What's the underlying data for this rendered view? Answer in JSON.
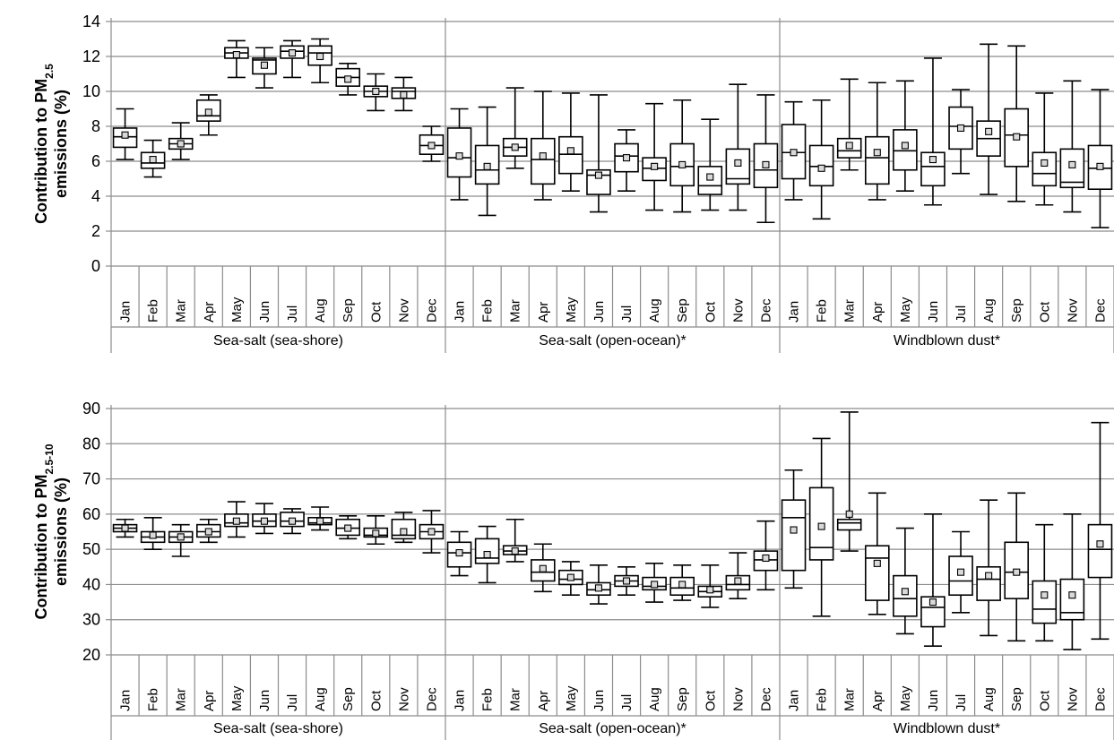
{
  "chart_data": [
    {
      "type": "box",
      "ylabel": "Contribution to PM",
      "ylabel_sub": "2.5",
      "ylabel_line2": "emissions  (%)",
      "ylim": [
        0,
        14
      ],
      "yticks": [
        "0",
        "2",
        "4",
        "6",
        "8",
        "10",
        "12",
        "14"
      ],
      "ytick_values": [
        0,
        2,
        4,
        6,
        8,
        10,
        12,
        14
      ],
      "grid": true,
      "categories": [
        "Jan",
        "Feb",
        "Mar",
        "Apr",
        "May",
        "Jun",
        "Jul",
        "Aug",
        "Sep",
        "Oct",
        "Nov",
        "Dec",
        "Jan",
        "Feb",
        "Mar",
        "Apr",
        "May",
        "Jun",
        "Jul",
        "Aug",
        "Sep",
        "Oct",
        "Nov",
        "Dec",
        "Jan",
        "Feb",
        "Mar",
        "Apr",
        "May",
        "Jun",
        "Jul",
        "Aug",
        "Sep",
        "Oct",
        "Nov",
        "Dec"
      ],
      "groups": [
        {
          "label": "Sea-salt (sea-shore)",
          "count": 12
        },
        {
          "label": "Sea-salt (open-ocean)*",
          "count": 12
        },
        {
          "label": "Windblown dust*",
          "count": 12
        }
      ],
      "stats": [
        [
          6.1,
          6.8,
          7.4,
          7.9,
          9.0,
          7.5
        ],
        [
          5.1,
          5.6,
          5.9,
          6.5,
          7.2,
          6.1
        ],
        [
          6.1,
          6.7,
          7.0,
          7.3,
          8.2,
          7.0
        ],
        [
          7.5,
          8.3,
          8.6,
          9.5,
          9.8,
          8.8
        ],
        [
          10.8,
          11.9,
          12.2,
          12.5,
          12.9,
          12.1
        ],
        [
          10.2,
          11.0,
          11.8,
          11.9,
          12.5,
          11.5
        ],
        [
          10.8,
          11.9,
          12.3,
          12.6,
          12.9,
          12.2
        ],
        [
          10.5,
          11.5,
          12.2,
          12.6,
          13.0,
          12.0
        ],
        [
          9.8,
          10.3,
          10.8,
          11.3,
          11.6,
          10.7
        ],
        [
          8.9,
          9.7,
          10.0,
          10.3,
          11.0,
          10.0
        ],
        [
          8.9,
          9.6,
          10.0,
          10.2,
          10.8,
          9.8
        ],
        [
          6.0,
          6.4,
          6.9,
          7.5,
          8.0,
          6.9
        ],
        [
          3.8,
          5.1,
          6.2,
          7.9,
          9.0,
          6.3
        ],
        [
          2.9,
          4.7,
          5.5,
          6.9,
          9.1,
          5.7
        ],
        [
          5.6,
          6.3,
          6.8,
          7.3,
          10.2,
          6.8
        ],
        [
          3.8,
          4.7,
          6.1,
          7.3,
          10.0,
          6.3
        ],
        [
          4.3,
          5.3,
          6.4,
          7.4,
          9.9,
          6.6
        ],
        [
          3.1,
          4.1,
          5.2,
          5.5,
          9.8,
          5.2
        ],
        [
          4.3,
          5.4,
          6.3,
          7.0,
          7.8,
          6.2
        ],
        [
          3.2,
          4.9,
          5.6,
          6.2,
          9.3,
          5.7
        ],
        [
          3.1,
          4.6,
          5.7,
          7.0,
          9.5,
          5.8
        ],
        [
          3.2,
          4.1,
          4.6,
          5.7,
          8.4,
          5.1
        ],
        [
          3.2,
          4.7,
          5.0,
          6.7,
          10.4,
          5.9
        ],
        [
          2.5,
          4.5,
          5.5,
          7.0,
          9.8,
          5.8
        ],
        [
          3.8,
          5.0,
          6.5,
          8.1,
          9.4,
          6.5
        ],
        [
          2.7,
          4.6,
          5.7,
          6.9,
          9.5,
          5.6
        ],
        [
          5.5,
          6.2,
          6.6,
          7.3,
          10.7,
          6.9
        ],
        [
          3.8,
          4.7,
          6.2,
          7.4,
          10.5,
          6.5
        ],
        [
          4.3,
          5.5,
          6.6,
          7.8,
          10.6,
          6.9
        ],
        [
          3.5,
          4.6,
          5.7,
          6.5,
          11.9,
          6.1
        ],
        [
          5.3,
          6.7,
          8.0,
          9.1,
          10.1,
          7.9
        ],
        [
          4.1,
          6.3,
          7.3,
          8.3,
          12.7,
          7.7
        ],
        [
          3.7,
          5.7,
          7.5,
          9.0,
          12.6,
          7.4
        ],
        [
          3.5,
          4.6,
          5.3,
          6.5,
          9.9,
          5.9
        ],
        [
          3.1,
          4.5,
          4.8,
          6.7,
          10.6,
          5.8
        ],
        [
          2.2,
          4.4,
          5.6,
          6.9,
          10.1,
          5.7
        ]
      ]
    },
    {
      "type": "box",
      "ylabel": "Contribution to PM",
      "ylabel_sub": "2.5-10",
      "ylabel_line2": "emissions  (%)",
      "ylim": [
        20,
        90
      ],
      "yticks": [
        "20",
        "30",
        "40",
        "50",
        "60",
        "70",
        "80",
        "90"
      ],
      "ytick_values": [
        20,
        30,
        40,
        50,
        60,
        70,
        80,
        90
      ],
      "grid": true,
      "categories": [
        "Jan",
        "Feb",
        "Mar",
        "Apr",
        "May",
        "Jun",
        "Jul",
        "Aug",
        "Sep",
        "Oct",
        "Nov",
        "Dec",
        "Jan",
        "Feb",
        "Mar",
        "Apr",
        "May",
        "Jun",
        "Jul",
        "Aug",
        "Sep",
        "Oct",
        "Nov",
        "Dec",
        "Jan",
        "Feb",
        "Mar",
        "Apr",
        "May",
        "Jun",
        "Jul",
        "Aug",
        "Sep",
        "Oct",
        "Nov",
        "Dec"
      ],
      "groups": [
        {
          "label": "Sea-salt (sea-shore)",
          "count": 12
        },
        {
          "label": "Sea-salt (open-ocean)*",
          "count": 12
        },
        {
          "label": "Windblown dust*",
          "count": 12
        }
      ],
      "stats": [
        [
          53.5,
          55.0,
          56.0,
          57.0,
          58.5,
          56.0
        ],
        [
          50.0,
          52.0,
          53.5,
          55.0,
          59.0,
          54.0
        ],
        [
          48.0,
          52.0,
          53.5,
          55.0,
          57.0,
          53.5
        ],
        [
          52.0,
          53.5,
          55.0,
          57.0,
          58.5,
          55.0
        ],
        [
          53.5,
          56.5,
          57.5,
          60.0,
          63.5,
          58.0
        ],
        [
          54.5,
          56.5,
          58.0,
          60.0,
          63.0,
          58.0
        ],
        [
          54.5,
          56.5,
          58.0,
          60.5,
          61.5,
          58.0
        ],
        [
          55.5,
          57.0,
          57.5,
          59.0,
          62.0,
          58.0
        ],
        [
          53.0,
          54.0,
          56.0,
          58.5,
          59.5,
          56.0
        ],
        [
          51.5,
          53.5,
          54.0,
          56.0,
          59.5,
          54.5
        ],
        [
          52.0,
          53.0,
          54.0,
          58.5,
          60.5,
          55.0
        ],
        [
          49.0,
          53.0,
          55.0,
          57.0,
          61.0,
          55.0
        ],
        [
          42.5,
          45.0,
          49.0,
          52.0,
          55.0,
          49.0
        ],
        [
          40.5,
          46.0,
          47.5,
          53.0,
          56.5,
          48.5
        ],
        [
          46.5,
          48.5,
          49.5,
          51.0,
          58.5,
          49.5
        ],
        [
          38.0,
          41.0,
          43.5,
          47.0,
          51.5,
          44.5
        ],
        [
          37.0,
          40.0,
          41.5,
          44.0,
          46.5,
          42.0
        ],
        [
          34.5,
          37.0,
          38.5,
          40.5,
          45.5,
          39.0
        ],
        [
          37.0,
          39.5,
          41.0,
          42.5,
          45.0,
          41.0
        ],
        [
          35.0,
          38.5,
          39.5,
          42.0,
          46.0,
          40.0
        ],
        [
          35.5,
          37.0,
          39.0,
          42.0,
          45.5,
          40.0
        ],
        [
          33.5,
          36.5,
          38.0,
          39.5,
          45.5,
          38.5
        ],
        [
          36.0,
          38.5,
          40.0,
          42.5,
          49.0,
          41.0
        ],
        [
          38.5,
          44.0,
          47.0,
          49.5,
          58.0,
          47.5
        ],
        [
          39.0,
          44.0,
          59.0,
          64.0,
          72.5,
          55.5
        ],
        [
          31.0,
          47.0,
          50.5,
          67.5,
          81.5,
          56.5
        ],
        [
          49.5,
          55.5,
          57.5,
          58.5,
          89.0,
          60.0
        ],
        [
          31.5,
          35.5,
          47.5,
          51.0,
          66.0,
          46.0
        ],
        [
          26.0,
          31.0,
          36.0,
          42.5,
          56.0,
          38.0
        ],
        [
          22.5,
          28.0,
          33.5,
          36.5,
          60.0,
          35.0
        ],
        [
          32.0,
          37.0,
          41.0,
          48.0,
          55.0,
          43.5
        ],
        [
          25.5,
          35.5,
          41.5,
          45.0,
          64.0,
          42.5
        ],
        [
          24.0,
          36.0,
          43.5,
          52.0,
          66.0,
          43.5
        ],
        [
          24.0,
          29.0,
          33.0,
          41.0,
          57.0,
          37.0
        ],
        [
          21.5,
          30.0,
          32.0,
          41.5,
          60.0,
          37.0
        ],
        [
          24.5,
          42.0,
          50.0,
          57.0,
          86.0,
          51.5
        ]
      ]
    }
  ]
}
